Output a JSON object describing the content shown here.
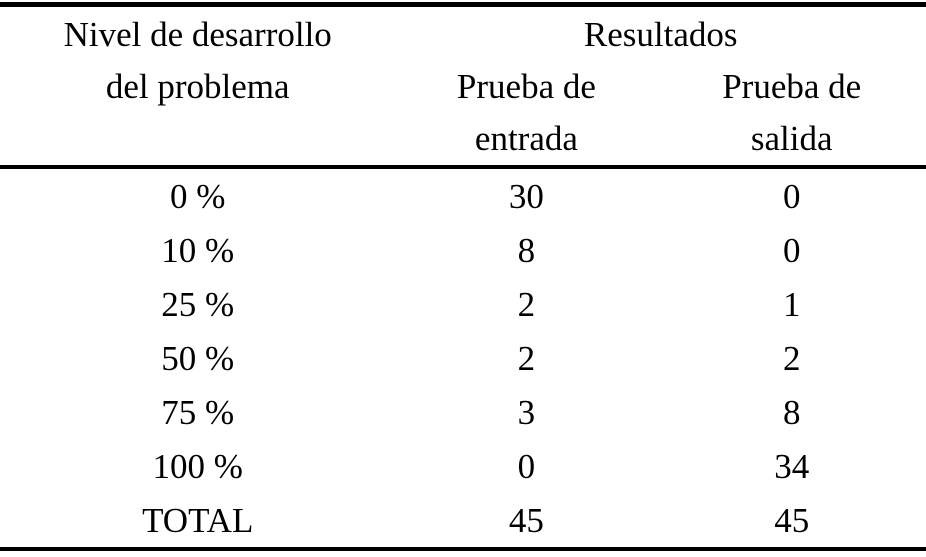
{
  "page": {
    "background": "#ffffff",
    "text_color": "#000000",
    "rule_color": "#000000"
  },
  "table": {
    "header": {
      "level": "Nivel de desarrollo\ndel problema",
      "results": "Resultados",
      "entry": "Prueba de\nentrada",
      "exit": "Prueba de\nsalida"
    },
    "rows": [
      {
        "level": "0 %",
        "entry": "30",
        "exit": "0"
      },
      {
        "level": "10 %",
        "entry": "8",
        "exit": "0"
      },
      {
        "level": "25 %",
        "entry": "2",
        "exit": "1"
      },
      {
        "level": "50 %",
        "entry": "2",
        "exit": "2"
      },
      {
        "level": "75 %",
        "entry": "3",
        "exit": "8"
      },
      {
        "level": "100 %",
        "entry": "0",
        "exit": "34"
      },
      {
        "level": "TOTAL",
        "entry": "45",
        "exit": "45"
      }
    ]
  }
}
